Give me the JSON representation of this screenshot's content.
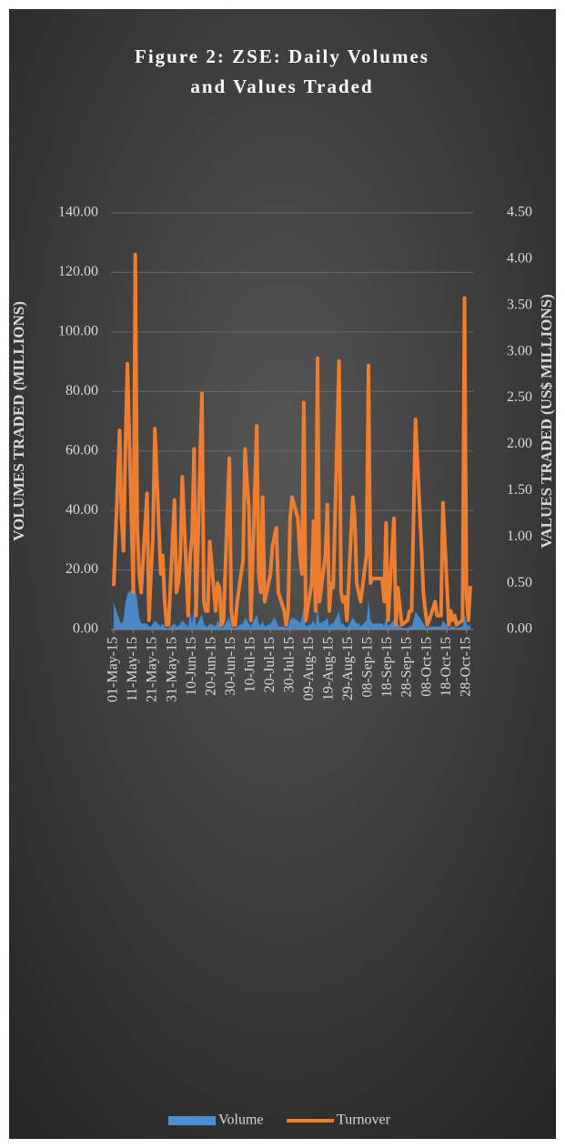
{
  "chart_data": {
    "type": "line",
    "title": "Figure 2: ZSE: Daily Volumes and Values Traded",
    "y_label": "VOLUMES TRADED (MILLIONS)",
    "y2_label": "VALUES TRADED (US$ MILLIONS)",
    "x": [
      "2015-05-01",
      "2015-05-04",
      "2015-05-05",
      "2015-05-06",
      "2015-05-07",
      "2015-05-08",
      "2015-05-11",
      "2015-05-12",
      "2015-05-13",
      "2015-05-14",
      "2015-05-15",
      "2015-05-18",
      "2015-05-19",
      "2015-05-20",
      "2015-05-21",
      "2015-05-22",
      "2015-05-25",
      "2015-05-26",
      "2015-05-27",
      "2015-05-28",
      "2015-05-29",
      "2015-06-01",
      "2015-06-02",
      "2015-06-03",
      "2015-06-04",
      "2015-06-05",
      "2015-06-08",
      "2015-06-09",
      "2015-06-10",
      "2015-06-11",
      "2015-06-12",
      "2015-06-15",
      "2015-06-16",
      "2015-06-17",
      "2015-06-18",
      "2015-06-19",
      "2015-06-22",
      "2015-06-23",
      "2015-06-24",
      "2015-06-25",
      "2015-06-26",
      "2015-06-29",
      "2015-06-30",
      "2015-07-01",
      "2015-07-02",
      "2015-07-03",
      "2015-07-06",
      "2015-07-07",
      "2015-07-08",
      "2015-07-09",
      "2015-07-10",
      "2015-07-13",
      "2015-07-14",
      "2015-07-15",
      "2015-07-16",
      "2015-07-17",
      "2015-07-20",
      "2015-07-21",
      "2015-07-22",
      "2015-07-23",
      "2015-07-24",
      "2015-07-27",
      "2015-07-28",
      "2015-07-29",
      "2015-07-30",
      "2015-07-31",
      "2015-08-03",
      "2015-08-04",
      "2015-08-05",
      "2015-08-06",
      "2015-08-07",
      "2015-08-10",
      "2015-08-11",
      "2015-08-12",
      "2015-08-13",
      "2015-08-14",
      "2015-08-17",
      "2015-08-18",
      "2015-08-19",
      "2015-08-20",
      "2015-08-21",
      "2015-08-24",
      "2015-08-25",
      "2015-08-26",
      "2015-08-27",
      "2015-08-28",
      "2015-08-31",
      "2015-09-01",
      "2015-09-02",
      "2015-09-03",
      "2015-09-04",
      "2015-09-07",
      "2015-09-08",
      "2015-09-09",
      "2015-09-10",
      "2015-09-11",
      "2015-09-14",
      "2015-09-15",
      "2015-09-16",
      "2015-09-17",
      "2015-09-18",
      "2015-09-21",
      "2015-09-22",
      "2015-09-23",
      "2015-09-24",
      "2015-09-25",
      "2015-09-28",
      "2015-09-29",
      "2015-09-30",
      "2015-10-01",
      "2015-10-02",
      "2015-10-05",
      "2015-10-06",
      "2015-10-07",
      "2015-10-08",
      "2015-10-09",
      "2015-10-12",
      "2015-10-13",
      "2015-10-14",
      "2015-10-15",
      "2015-10-16",
      "2015-10-19",
      "2015-10-20",
      "2015-10-21",
      "2015-10-22",
      "2015-10-23",
      "2015-10-26",
      "2015-10-27",
      "2015-10-28",
      "2015-10-29",
      "2015-10-30"
    ],
    "series": [
      {
        "name": "Volume",
        "type": "area",
        "color": "#4a8fd4",
        "values": [
          9,
          3,
          2,
          3,
          9,
          12,
          14,
          13,
          10,
          4,
          2,
          2,
          1,
          1,
          2,
          3,
          1,
          2,
          1,
          0.5,
          0.5,
          2,
          1,
          1,
          2,
          3,
          1,
          6,
          2,
          7,
          1,
          5,
          2,
          1,
          1,
          2,
          1,
          3,
          2,
          0.5,
          1,
          4,
          1,
          0.5,
          0.5,
          1,
          2,
          4,
          3,
          2,
          1,
          5,
          2,
          1,
          3,
          1,
          2,
          3,
          4,
          3,
          1,
          1,
          0.5,
          1,
          3,
          4,
          3,
          2,
          4,
          8,
          1,
          2,
          3,
          1,
          7,
          2,
          3,
          4,
          1,
          2,
          2,
          6,
          2,
          2,
          1,
          0.5,
          4,
          3,
          2,
          2,
          1,
          3,
          10,
          3,
          2,
          2,
          2,
          2,
          1,
          4,
          1,
          3,
          0.5,
          2,
          1,
          0.5,
          0.5,
          1,
          1,
          3,
          6,
          3,
          2,
          1,
          0.5,
          1,
          1,
          1,
          1,
          1,
          3,
          0.5,
          1,
          1,
          1,
          0.5,
          1,
          5,
          2,
          1,
          2
        ]
      },
      {
        "name": "Turnover",
        "type": "line",
        "axis": "y2",
        "color": "#ed7d31",
        "values": [
          0.47,
          2.15,
          1.2,
          0.85,
          2.0,
          2.87,
          0.4,
          4.05,
          1.1,
          0.6,
          0.4,
          1.47,
          0.1,
          0.6,
          1.0,
          2.17,
          0.6,
          0.8,
          0.3,
          0.05,
          0.05,
          1.4,
          0.4,
          0.5,
          0.8,
          1.65,
          0.15,
          0.8,
          1.0,
          1.95,
          0.15,
          2.55,
          0.3,
          0.2,
          0.2,
          0.95,
          0.2,
          0.5,
          0.45,
          0.05,
          0.1,
          1.85,
          0.2,
          0.05,
          0.05,
          0.3,
          0.75,
          1.95,
          1.6,
          1.3,
          0.1,
          2.2,
          0.6,
          0.4,
          1.43,
          0.3,
          0.6,
          0.9,
          1.0,
          1.1,
          0.4,
          0.2,
          0.05,
          0.2,
          1.2,
          1.43,
          1.2,
          0.8,
          0.6,
          2.45,
          0.1,
          0.5,
          1.17,
          0.2,
          2.93,
          0.3,
          0.8,
          1.35,
          0.2,
          0.5,
          0.45,
          2.9,
          0.4,
          0.3,
          0.35,
          0.1,
          1.43,
          1.2,
          0.5,
          0.4,
          0.3,
          0.8,
          2.85,
          0.5,
          0.55,
          0.55,
          0.55,
          0.55,
          0.3,
          1.15,
          0.1,
          1.2,
          0.05,
          0.45,
          0.25,
          0.05,
          0.1,
          0.2,
          0.2,
          1.2,
          2.27,
          0.9,
          0.4,
          0.2,
          0.05,
          0.1,
          0.3,
          0.15,
          0.15,
          0.15,
          1.37,
          0.05,
          0.2,
          0.1,
          0.15,
          0.05,
          0.1,
          3.58,
          0.4,
          0.1,
          0.47
        ]
      }
    ],
    "xlim": [
      "2015-05-01",
      "2015-10-30"
    ],
    "xticks": [
      {
        "value": "2015-05-01",
        "label": "01-May-15"
      },
      {
        "value": "2015-05-11",
        "label": "11-May-15"
      },
      {
        "value": "2015-05-21",
        "label": "21-May-15"
      },
      {
        "value": "2015-05-31",
        "label": "31-May-15"
      },
      {
        "value": "2015-06-10",
        "label": "10-Jun-15"
      },
      {
        "value": "2015-06-20",
        "label": "20-Jun-15"
      },
      {
        "value": "2015-06-30",
        "label": "30-Jun-15"
      },
      {
        "value": "2015-07-10",
        "label": "10-Jul-15"
      },
      {
        "value": "2015-07-20",
        "label": "20-Jul-15"
      },
      {
        "value": "2015-07-30",
        "label": "30-Jul-15"
      },
      {
        "value": "2015-08-09",
        "label": "09-Aug-15"
      },
      {
        "value": "2015-08-19",
        "label": "19-Aug-15"
      },
      {
        "value": "2015-08-29",
        "label": "29-Aug-15"
      },
      {
        "value": "2015-09-08",
        "label": "08-Sep-15"
      },
      {
        "value": "2015-09-18",
        "label": "18-Sep-15"
      },
      {
        "value": "2015-09-28",
        "label": "28-Sep-15"
      },
      {
        "value": "2015-10-08",
        "label": "08-Oct-15"
      },
      {
        "value": "2015-10-18",
        "label": "18-Oct-15"
      },
      {
        "value": "2015-10-28",
        "label": "28-Oct-15"
      }
    ],
    "ylim": [
      0,
      140
    ],
    "yticks": [
      {
        "value": 0,
        "label": "0.00"
      },
      {
        "value": 20,
        "label": "20.00"
      },
      {
        "value": 40,
        "label": "40.00"
      },
      {
        "value": 60,
        "label": "60.00"
      },
      {
        "value": 80,
        "label": "80.00"
      },
      {
        "value": 100,
        "label": "100.00"
      },
      {
        "value": 120,
        "label": "120.00"
      },
      {
        "value": 140,
        "label": "140.00"
      }
    ],
    "y2lim": [
      0,
      4.5
    ],
    "y2ticks": [
      {
        "value": 0,
        "label": "0.00"
      },
      {
        "value": 0.5,
        "label": "0.50"
      },
      {
        "value": 1,
        "label": "1.00"
      },
      {
        "value": 1.5,
        "label": "1.50"
      },
      {
        "value": 2,
        "label": "2.00"
      },
      {
        "value": 2.5,
        "label": "2.50"
      },
      {
        "value": 3,
        "label": "3.00"
      },
      {
        "value": 3.5,
        "label": "3.50"
      },
      {
        "value": 4,
        "label": "4.00"
      },
      {
        "value": 4.5,
        "label": "4.50"
      }
    ],
    "grid": true,
    "legend": "bottom"
  }
}
